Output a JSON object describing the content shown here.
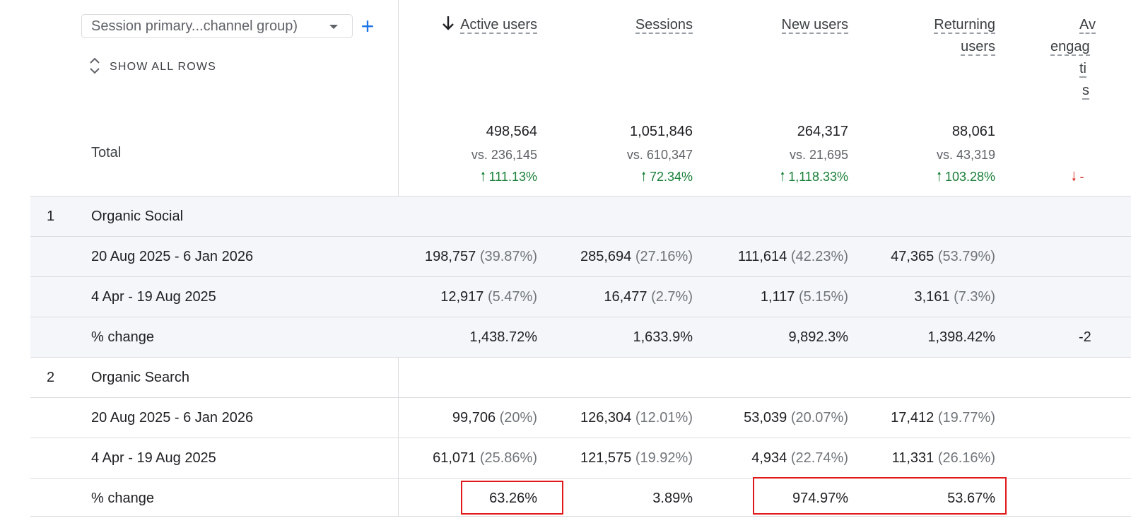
{
  "dimension_selector": {
    "value": "Session primary...channel group)",
    "add_label": "+"
  },
  "show_all_rows": "SHOW ALL ROWS",
  "total_label": "Total",
  "columns": [
    {
      "label": "Active users",
      "sorted": "desc"
    },
    {
      "label": "Sessions"
    },
    {
      "label": "New users"
    },
    {
      "label_line1": "Returning",
      "label_line2": "users"
    },
    {
      "label_line1": "Av",
      "label_line2": "engag",
      "label_line3": "ti",
      "label_line4": "s"
    }
  ],
  "totals": [
    {
      "value": "498,564",
      "vs": "vs. 236,145",
      "change": "111.13%",
      "direction": "up"
    },
    {
      "value": "1,051,846",
      "vs": "vs. 610,347",
      "change": "72.34%",
      "direction": "up"
    },
    {
      "value": "264,317",
      "vs": "vs. 21,695",
      "change": "1,118.33%",
      "direction": "up"
    },
    {
      "value": "88,061",
      "vs": "vs. 43,319",
      "change": "103.28%",
      "direction": "up"
    },
    {
      "value": "",
      "vs": "",
      "change": "-",
      "direction": "down"
    }
  ],
  "groups": [
    {
      "index": "1",
      "name": "Organic Social",
      "rows": [
        {
          "label": "20 Aug 2025 - 6 Jan 2026",
          "cells": [
            {
              "v": "198,757",
              "p": "(39.87%)"
            },
            {
              "v": "285,694",
              "p": "(27.16%)"
            },
            {
              "v": "111,614",
              "p": "(42.23%)"
            },
            {
              "v": "47,365",
              "p": "(53.79%)"
            }
          ]
        },
        {
          "label": "4 Apr - 19 Aug 2025",
          "cells": [
            {
              "v": "12,917",
              "p": "(5.47%)"
            },
            {
              "v": "16,477",
              "p": "(2.7%)"
            },
            {
              "v": "1,117",
              "p": "(5.15%)"
            },
            {
              "v": "3,161",
              "p": "(7.3%)"
            }
          ]
        },
        {
          "label": "% change",
          "cells": [
            {
              "v": "1,438.72%"
            },
            {
              "v": "1,633.9%"
            },
            {
              "v": "9,892.3%"
            },
            {
              "v": "1,398.42%"
            },
            {
              "v": "-2"
            }
          ]
        }
      ]
    },
    {
      "index": "2",
      "name": "Organic Search",
      "rows": [
        {
          "label": "20 Aug 2025 - 6 Jan 2026",
          "cells": [
            {
              "v": "99,706",
              "p": "(20%)"
            },
            {
              "v": "126,304",
              "p": "(12.01%)"
            },
            {
              "v": "53,039",
              "p": "(20.07%)"
            },
            {
              "v": "17,412",
              "p": "(19.77%)"
            }
          ]
        },
        {
          "label": "4 Apr - 19 Aug 2025",
          "cells": [
            {
              "v": "61,071",
              "p": "(25.86%)"
            },
            {
              "v": "121,575",
              "p": "(19.92%)"
            },
            {
              "v": "4,934",
              "p": "(22.74%)"
            },
            {
              "v": "11,331",
              "p": "(26.16%)"
            }
          ]
        },
        {
          "label": "% change",
          "cells": [
            {
              "v": "63.26%"
            },
            {
              "v": "3.89%"
            },
            {
              "v": "974.97%"
            },
            {
              "v": "53.67%"
            }
          ]
        }
      ]
    }
  ],
  "colors": {
    "accent": "#1a73e8",
    "positive": "#188038",
    "negative": "#d93025",
    "highlight": "#e0191a",
    "row_shade": "#f4f6f9"
  }
}
